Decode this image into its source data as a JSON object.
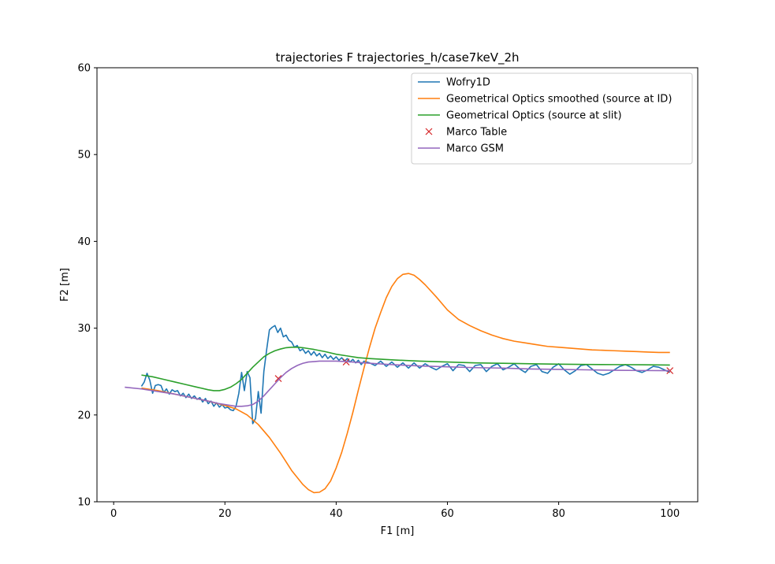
{
  "chart_data": {
    "type": "line",
    "title": "trajectories F trajectories_h/case7keV_2h",
    "xlabel": "F1 [m]",
    "ylabel": "F2 [m]",
    "xlim": [
      -3,
      105
    ],
    "ylim": [
      10,
      60
    ],
    "xticks": [
      "0",
      "20",
      "40",
      "60",
      "80",
      "100"
    ],
    "xtick_values": [
      0,
      20,
      40,
      60,
      80,
      100
    ],
    "yticks": [
      "10",
      "20",
      "30",
      "40",
      "50",
      "60"
    ],
    "ytick_values": [
      10,
      20,
      30,
      40,
      50,
      60
    ],
    "grid": false,
    "legend_position": "top-right",
    "series": [
      {
        "name": "Wofry1D",
        "color": "#1f77b4",
        "style": "line",
        "x": [
          5,
          5.5,
          6,
          6.5,
          7,
          7.5,
          8,
          8.5,
          9,
          9.5,
          10,
          10.5,
          11,
          11.5,
          12,
          12.5,
          13,
          13.5,
          14,
          14.5,
          15,
          15.5,
          16,
          16.5,
          17,
          17.5,
          18,
          18.5,
          19,
          19.5,
          20,
          20.5,
          21,
          21.5,
          22,
          22.5,
          23,
          23.5,
          24,
          24.5,
          25,
          25.5,
          26,
          26.5,
          27,
          27.5,
          28,
          28.5,
          29,
          29.5,
          30,
          30.5,
          31,
          31.5,
          32,
          32.5,
          33,
          33.5,
          34,
          34.5,
          35,
          35.5,
          36,
          36.5,
          37,
          37.5,
          38,
          38.5,
          39,
          39.5,
          40,
          40.5,
          41,
          41.5,
          42,
          42.5,
          43,
          43.5,
          44,
          44.5,
          45,
          46,
          47,
          48,
          49,
          50,
          51,
          52,
          53,
          54,
          55,
          56,
          57,
          58,
          59,
          60,
          61,
          62,
          63,
          64,
          65,
          66,
          67,
          68,
          69,
          70,
          71,
          72,
          73,
          74,
          75,
          76,
          77,
          78,
          79,
          80,
          81,
          82,
          83,
          84,
          85,
          86,
          87,
          88,
          89,
          90,
          91,
          92,
          93,
          94,
          95,
          96,
          97,
          98,
          99,
          100
        ],
        "y": [
          23.3,
          23.8,
          24.8,
          24.0,
          22.5,
          23.4,
          23.5,
          23.4,
          22.6,
          23.0,
          22.4,
          22.9,
          22.7,
          22.8,
          22.2,
          22.5,
          22.0,
          22.4,
          21.9,
          22.2,
          21.8,
          22.0,
          21.5,
          21.9,
          21.3,
          21.6,
          21.0,
          21.4,
          20.9,
          21.2,
          20.8,
          20.9,
          20.6,
          20.5,
          21.0,
          22.5,
          24.9,
          22.8,
          25.0,
          24.3,
          19.0,
          19.6,
          22.7,
          20.2,
          25.0,
          27.5,
          29.8,
          30.1,
          30.3,
          29.5,
          30.0,
          29.0,
          29.2,
          28.6,
          28.4,
          27.8,
          28.0,
          27.4,
          27.6,
          27.1,
          27.4,
          26.9,
          27.3,
          26.8,
          27.1,
          26.6,
          27.0,
          26.5,
          26.8,
          26.4,
          26.7,
          26.3,
          26.6,
          26.2,
          26.5,
          26.1,
          26.4,
          26.0,
          26.3,
          25.8,
          26.2,
          26.0,
          25.7,
          26.2,
          25.6,
          26.1,
          25.5,
          26.0,
          25.4,
          26.0,
          25.4,
          25.9,
          25.5,
          25.2,
          25.6,
          25.9,
          25.1,
          25.8,
          25.7,
          25.0,
          25.7,
          25.8,
          25.0,
          25.6,
          25.9,
          25.2,
          25.5,
          25.9,
          25.3,
          24.9,
          25.6,
          25.8,
          25.0,
          24.8,
          25.5,
          25.9,
          25.2,
          24.7,
          25.1,
          25.7,
          25.8,
          25.3,
          24.8,
          24.6,
          24.8,
          25.2,
          25.6,
          25.8,
          25.5,
          25.1,
          24.9,
          25.2,
          25.6,
          25.5,
          25.2,
          24.9
        ]
      },
      {
        "name": "Geometrical Optics smoothed (source at ID)",
        "color": "#ff7f0e",
        "style": "line",
        "x": [
          5,
          8,
          11,
          14,
          17,
          20,
          22,
          24,
          26,
          28,
          30,
          32,
          34,
          35,
          36,
          37,
          38,
          39,
          40,
          41,
          42,
          43,
          44,
          45,
          46,
          47,
          48,
          49,
          50,
          51,
          52,
          53,
          54,
          55,
          56,
          58,
          60,
          62,
          64,
          66,
          68,
          70,
          72,
          74,
          76,
          78,
          80,
          82,
          84,
          86,
          88,
          90,
          92,
          94,
          96,
          98,
          100
        ],
        "y": [
          23.1,
          22.8,
          22.4,
          22.0,
          21.6,
          21.1,
          20.7,
          20.0,
          18.9,
          17.4,
          15.6,
          13.6,
          12.0,
          11.4,
          11.05,
          11.1,
          11.5,
          12.4,
          13.9,
          15.7,
          17.9,
          20.3,
          22.9,
          25.4,
          27.8,
          30.0,
          31.8,
          33.5,
          34.8,
          35.7,
          36.2,
          36.3,
          36.1,
          35.6,
          35.0,
          33.6,
          32.1,
          31.0,
          30.3,
          29.7,
          29.2,
          28.8,
          28.5,
          28.3,
          28.1,
          27.9,
          27.8,
          27.7,
          27.6,
          27.5,
          27.45,
          27.4,
          27.35,
          27.3,
          27.25,
          27.2,
          27.2
        ]
      },
      {
        "name": "Geometrical Optics (source at slit)",
        "color": "#2ca02c",
        "style": "line",
        "x": [
          5,
          7,
          9,
          11,
          13,
          15,
          17,
          18,
          19,
          20,
          21,
          22,
          23,
          24,
          25,
          26,
          27,
          28,
          29,
          30,
          31,
          32,
          33,
          34,
          35,
          36,
          38,
          40,
          42,
          44,
          46,
          50,
          55,
          60,
          65,
          70,
          75,
          80,
          85,
          90,
          95,
          100
        ],
        "y": [
          24.6,
          24.4,
          24.1,
          23.8,
          23.5,
          23.2,
          22.9,
          22.8,
          22.8,
          22.95,
          23.2,
          23.6,
          24.1,
          24.8,
          25.5,
          26.1,
          26.7,
          27.1,
          27.4,
          27.6,
          27.75,
          27.8,
          27.8,
          27.75,
          27.65,
          27.55,
          27.3,
          27.0,
          26.8,
          26.6,
          26.5,
          26.35,
          26.2,
          26.1,
          26.0,
          25.95,
          25.9,
          25.85,
          25.82,
          25.8,
          25.78,
          25.75
        ]
      },
      {
        "name": "Marco Table",
        "color": "#d62728",
        "style": "marker-x",
        "x": [
          29.6,
          41.8,
          100
        ],
        "y": [
          24.2,
          26.1,
          25.1
        ]
      },
      {
        "name": "Marco GSM",
        "color": "#9467bd",
        "style": "line",
        "x": [
          2,
          5,
          8,
          11,
          14,
          17,
          19,
          21,
          22,
          23,
          24,
          25,
          26,
          27,
          28,
          29,
          30,
          31,
          32,
          33,
          34,
          35,
          36,
          37,
          38,
          40,
          42,
          45,
          50,
          55,
          60,
          65,
          70,
          75,
          80,
          85,
          90,
          95,
          100
        ],
        "y": [
          23.2,
          23.0,
          22.7,
          22.4,
          22.0,
          21.6,
          21.3,
          21.1,
          21.0,
          21.0,
          21.05,
          21.2,
          21.6,
          22.2,
          22.9,
          23.6,
          24.3,
          24.9,
          25.35,
          25.7,
          25.95,
          26.1,
          26.15,
          26.2,
          26.2,
          26.2,
          26.15,
          26.0,
          25.8,
          25.65,
          25.55,
          25.45,
          25.4,
          25.3,
          25.25,
          25.2,
          25.15,
          25.12,
          25.1
        ]
      }
    ]
  }
}
